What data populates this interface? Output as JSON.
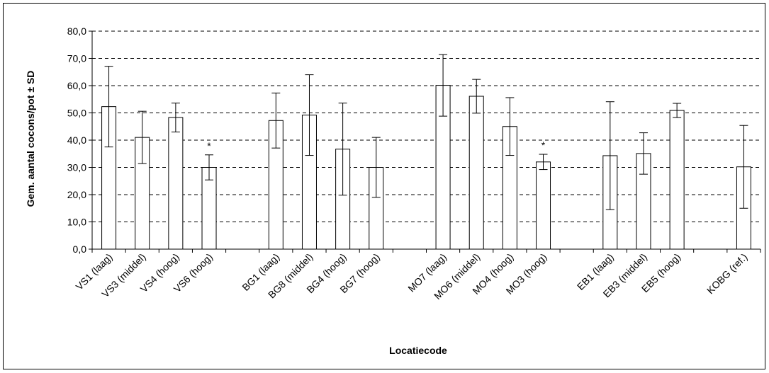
{
  "chart_data": {
    "type": "bar",
    "xlabel": "Locatiecode",
    "ylabel": "Gem. aantal cocons/pot ± SD",
    "ylim": [
      0,
      80
    ],
    "ytick_step": 10,
    "ytick_labels": [
      "0,0",
      "10,0",
      "20,0",
      "30,0",
      "40,0",
      "50,0",
      "60,0",
      "70,0",
      "80,0"
    ],
    "grid": "horizontal dashed",
    "legend": "none",
    "categories": [
      "VS1 (laag)",
      "VS3 (middel)",
      "VS4 (hoog)",
      "VS6 (hoog)",
      "",
      "BG1 (laag)",
      "BG8 (middel)",
      "BG4 (hoog)",
      "BG7 (hoog)",
      "",
      "MO7 (laag)",
      "MO6 (middel)",
      "MO4 (hoog)",
      "MO3 (hoog)",
      "",
      "EB1 (laag)",
      "EB3 (middel)",
      "EB5 (hoog)",
      "",
      "KOBG (ref.)"
    ],
    "values": [
      52.3,
      41.0,
      48.3,
      30.0,
      null,
      47.2,
      49.2,
      36.7,
      30.0,
      null,
      60.1,
      56.1,
      45.0,
      32.0,
      null,
      34.3,
      35.1,
      50.9,
      null,
      30.2
    ],
    "sd": [
      14.8,
      9.6,
      5.3,
      4.6,
      null,
      10.1,
      14.8,
      16.9,
      11.0,
      null,
      11.3,
      6.2,
      10.6,
      2.8,
      null,
      19.8,
      7.6,
      2.6,
      null,
      15.2
    ],
    "annotations": [
      {
        "category": "VS6 (hoog)",
        "text": "*"
      },
      {
        "category": "MO3 (hoog)",
        "text": "*"
      }
    ],
    "colors": {
      "bar_fill": "#ffffff",
      "bar_stroke": "#000000",
      "grid": "#000000"
    }
  }
}
